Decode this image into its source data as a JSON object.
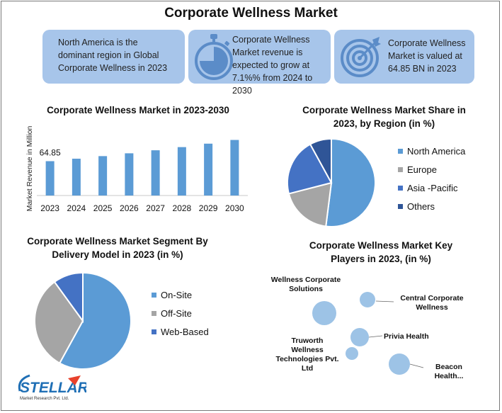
{
  "title": "Corporate Wellness Market",
  "cards": [
    {
      "text": "North America is the dominant region in Global Corporate Wellness in 2023",
      "icon": "none"
    },
    {
      "text": "Corporate Wellness Market revenue is expected to grow at 7.1%% from 2024 to 2030",
      "icon": "stopwatch-icon"
    },
    {
      "text": "Corporate Wellness Market is valued at 64.85 BN in 2023",
      "icon": "target-icon"
    }
  ],
  "colors": {
    "card": "#a7c5ea",
    "bar": "#5b9bd5",
    "gray": "#a5a5a5",
    "navy": "#2f5597",
    "darkblue": "#4472c4",
    "brand": "#1f6fb5"
  },
  "chart_data": [
    {
      "type": "bar",
      "title": "Corporate Wellness Market in 2023-2030",
      "ylabel": "Market Revenue in Million",
      "xlabel": "",
      "categories": [
        "2023",
        "2024",
        "2025",
        "2026",
        "2027",
        "2028",
        "2029",
        "2030"
      ],
      "values": [
        64.85,
        69.5,
        74.4,
        79.7,
        85.4,
        91.4,
        97.9,
        104.9
      ],
      "data_labels": [
        "64.85",
        "",
        "",
        "",
        "",
        "",
        "",
        ""
      ],
      "ylim": [
        0,
        115
      ],
      "grid": false
    },
    {
      "type": "pie",
      "title": "Corporate Wellness Market Share in 2023, by Region (in %)",
      "labels": [
        "North America",
        "Europe",
        "Asia -Pacific",
        "Others"
      ],
      "values": [
        52,
        19,
        21,
        8
      ],
      "colors": [
        "#5b9bd5",
        "#a5a5a5",
        "#4472c4",
        "#2f5597"
      ],
      "legend": "right"
    },
    {
      "type": "pie",
      "title": "Corporate Wellness Market Segment By Delivery Model in 2023 (in %)",
      "labels": [
        "On-Site",
        "Off-Site",
        "Web-Based"
      ],
      "values": [
        58,
        32,
        10
      ],
      "colors": [
        "#5b9bd5",
        "#a5a5a5",
        "#4472c4"
      ],
      "legend": "right"
    },
    {
      "type": "scatter",
      "title": "Corporate Wellness Market Key Players in 2023, (in %)",
      "points": [
        {
          "label": "Wellness Corporate Solutions"
        },
        {
          "label": "Central Corporate Wellness"
        },
        {
          "label": "Privia Health"
        },
        {
          "label": "Truworth Wellness Technologies Pvt. Ltd"
        },
        {
          "label": "Beacon Health..."
        }
      ]
    }
  ],
  "brand": {
    "name": "STELLAR",
    "tagline": "Market Research Pvt. Ltd."
  }
}
